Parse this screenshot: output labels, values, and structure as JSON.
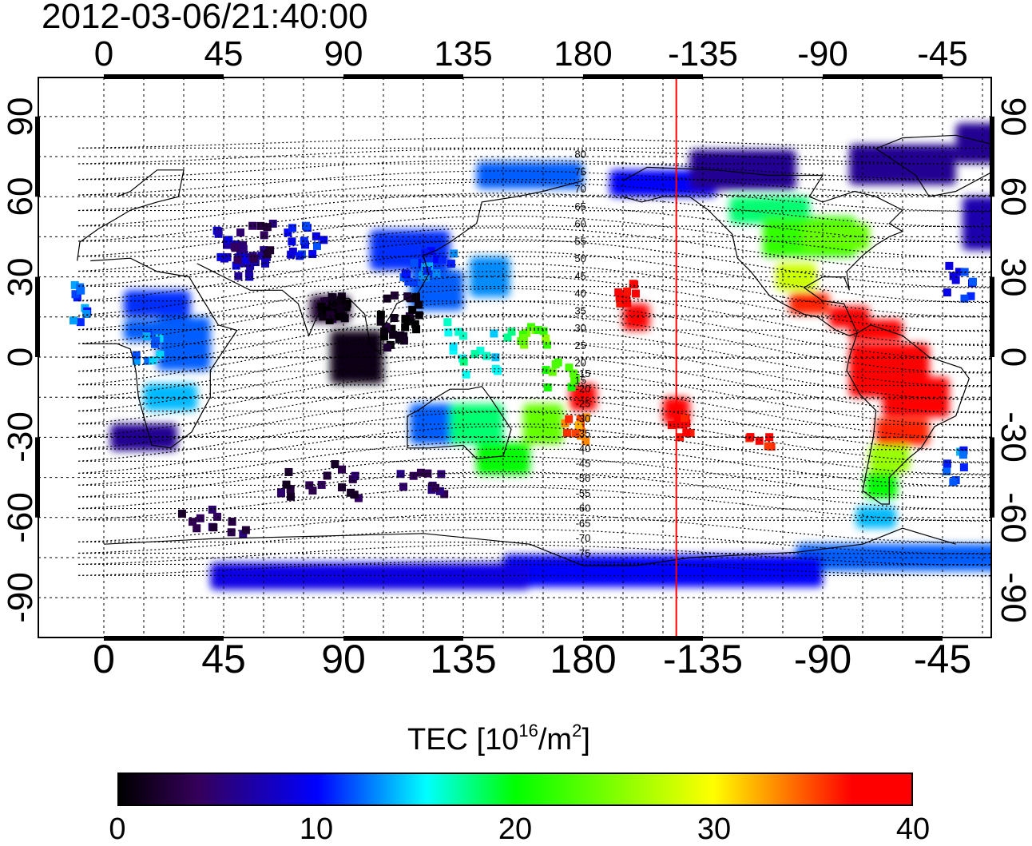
{
  "title": "2012-03-06/21:40:00",
  "map": {
    "lon_ticks": [
      "0",
      "45",
      "90",
      "135",
      "180",
      "-135",
      "-90",
      "-45"
    ],
    "lat_ticks": [
      "90",
      "60",
      "30",
      "0",
      "-30",
      "-60",
      "-90"
    ],
    "lon_range": [
      -13,
      169
    ],
    "lat_range": [
      -93,
      93
    ],
    "terminator_longitude": -145,
    "contour_labels_north": [
      "80",
      "75",
      "70",
      "65",
      "60",
      "55",
      "50",
      "45",
      "40",
      "35",
      "30",
      "25",
      "20",
      "15"
    ],
    "contour_labels_south": [
      "-15",
      "-20",
      "-25",
      "-30",
      "-35",
      "-40",
      "-45",
      "-50",
      "-55",
      "-60",
      "-65",
      "-70",
      "-75"
    ],
    "colors": {
      "terminator": "#ff0000",
      "frame": "#000000",
      "grid": "#000000"
    }
  },
  "colorbar": {
    "label_main": "TEC  [10",
    "label_exp1": "16",
    "label_mid": "/m",
    "label_exp2": "2",
    "label_end": "]",
    "ticks": [
      "0",
      "10",
      "20",
      "30",
      "40"
    ],
    "range": [
      0,
      40
    ],
    "stops": [
      "#000000",
      "#35005a",
      "#0000ff",
      "#00ffff",
      "#00ff00",
      "#ffff00",
      "#ff0000"
    ]
  }
}
